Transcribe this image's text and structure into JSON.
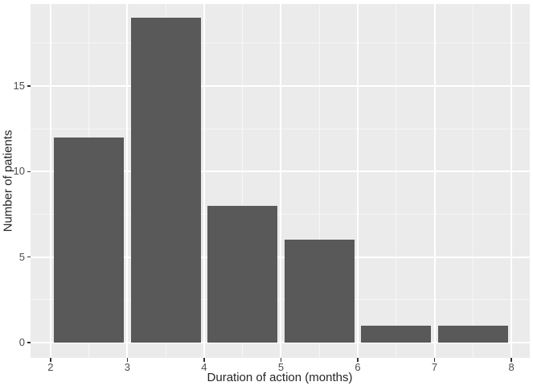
{
  "chart_data": {
    "type": "bar",
    "subtype": "histogram",
    "style": "ggplot2-theme-grey",
    "title": "",
    "xlabel": "Duration of action (months)",
    "ylabel": "Number of patients",
    "bin_edges": [
      2,
      3,
      4,
      5,
      6,
      7,
      8
    ],
    "counts": [
      12,
      19,
      8,
      6,
      1,
      1
    ],
    "x_ticks": [
      2,
      3,
      4,
      5,
      6,
      7,
      8
    ],
    "x_tick_labels": [
      "2",
      "3",
      "4",
      "5",
      "6",
      "7",
      "8"
    ],
    "y_ticks": [
      0,
      5,
      10,
      15
    ],
    "y_tick_labels": [
      "0",
      "5",
      "10",
      "15"
    ],
    "x_minor_gridlines": [
      2.5,
      3.5,
      4.5,
      5.5,
      6.5,
      7.5
    ],
    "y_minor_gridlines": [
      2.5,
      7.5,
      12.5,
      17.5
    ],
    "xlim": [
      1.74,
      8.24
    ],
    "ylim": [
      -0.9,
      19.8
    ],
    "grid": "on",
    "legend": "none",
    "bar_width_fraction": 0.91,
    "colors": {
      "bar_fill": "#595959",
      "panel_background": "#EBEBEB",
      "grid_major": "#FFFFFF",
      "grid_minor": "rgba(255,255,255,0.55)",
      "tick_mark": "#333333",
      "tick_label": "#4D4D4D",
      "axis_title": "#262626",
      "figure_background": "#FFFFFF"
    }
  }
}
